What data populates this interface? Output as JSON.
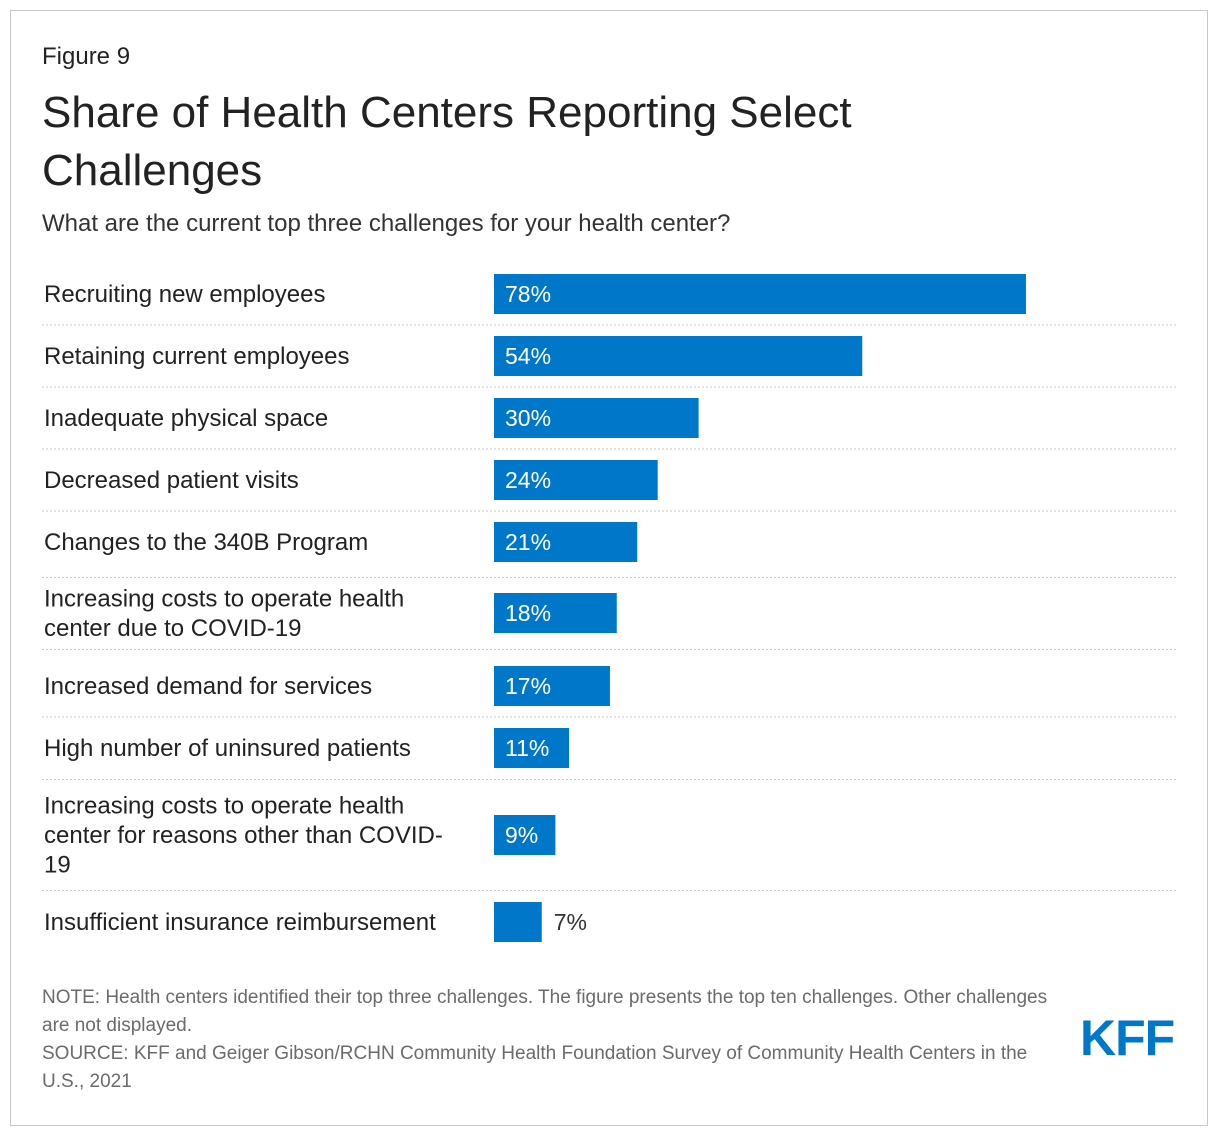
{
  "figure_label": "Figure 9",
  "title": "Share of Health Centers Reporting Select Challenges",
  "subtitle": "What are the current top three challenges for your health center?",
  "colors": {
    "bar": "#0077c8",
    "label_inside": "#ffffff",
    "label_outside": "#333333",
    "gridline": "#c8c8c8",
    "logo": "#0077c8"
  },
  "chart_data": {
    "type": "bar",
    "orientation": "horizontal",
    "title": "Share of Health Centers Reporting Select Challenges",
    "subtitle": "What are the current top three challenges for your health center?",
    "xlabel": "",
    "ylabel": "",
    "xlim": [
      0,
      100
    ],
    "value_suffix": "%",
    "categories": [
      [
        "Recruiting new employees"
      ],
      [
        "Retaining current employees"
      ],
      [
        "Inadequate physical space"
      ],
      [
        "Decreased patient visits"
      ],
      [
        "Changes to the 340B Program"
      ],
      [
        "Increasing costs to operate health",
        "center due to COVID-19"
      ],
      [
        "Increased demand for services"
      ],
      [
        "High number of uninsured patients"
      ],
      [
        "Increasing costs to operate health",
        "center for reasons other than COVID-",
        "19"
      ],
      [
        "Insufficient insurance reimbursement"
      ]
    ],
    "values": [
      78,
      54,
      30,
      24,
      21,
      18,
      17,
      11,
      9,
      7
    ],
    "data_labels": [
      "78%",
      "54%",
      "30%",
      "24%",
      "21%",
      "18%",
      "17%",
      "11%",
      "9%",
      "7%"
    ]
  },
  "notes": {
    "note": "NOTE: Health centers identified their top three challenges. The figure presents the top ten challenges. Other challenges are not displayed.",
    "source": "SOURCE: KFF and Geiger Gibson/RCHN Community Health Foundation Survey of Community Health Centers in the U.S., 2021"
  },
  "logo_text": "KFF"
}
